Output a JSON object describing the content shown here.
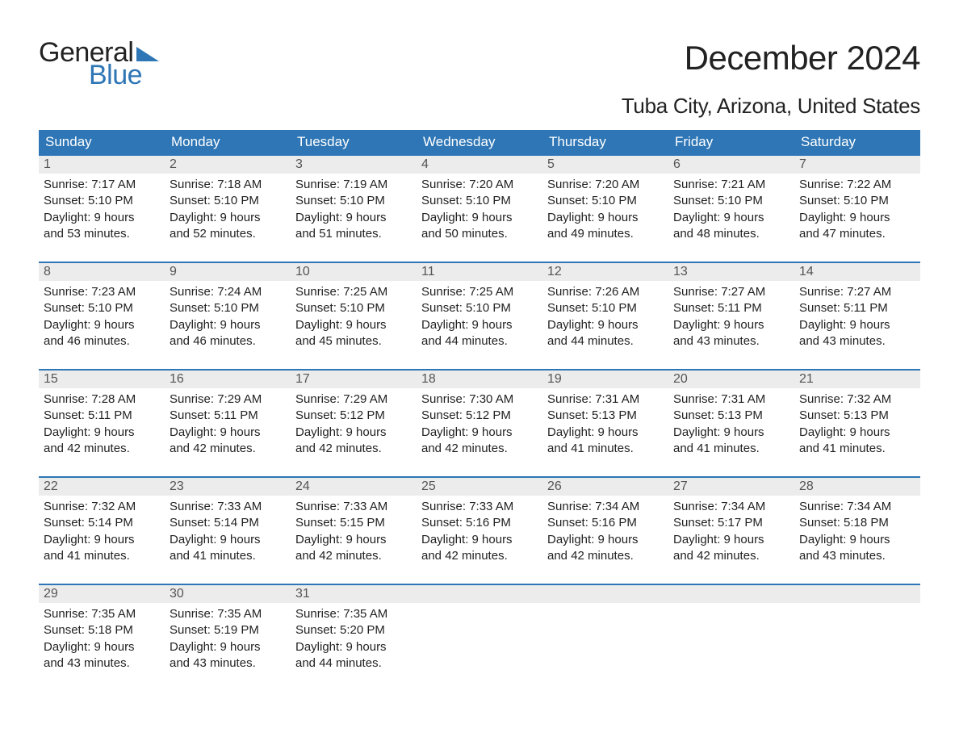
{
  "logo": {
    "line1": "General",
    "line2": "Blue",
    "accent_color": "#2e76b5"
  },
  "title": "December 2024",
  "location": "Tuba City, Arizona, United States",
  "colors": {
    "header_bg": "#2e76b5",
    "daynum_bg": "#ececec",
    "text": "#222222",
    "daynum_text": "#555555",
    "page_bg": "#ffffff"
  },
  "fonts": {
    "title_size": 42,
    "location_size": 26,
    "weekday_size": 17,
    "body_size": 15
  },
  "weekdays": [
    "Sunday",
    "Monday",
    "Tuesday",
    "Wednesday",
    "Thursday",
    "Friday",
    "Saturday"
  ],
  "weeks": [
    [
      {
        "n": "1",
        "sunrise": "Sunrise: 7:17 AM",
        "sunset": "Sunset: 5:10 PM",
        "d1": "Daylight: 9 hours",
        "d2": "and 53 minutes."
      },
      {
        "n": "2",
        "sunrise": "Sunrise: 7:18 AM",
        "sunset": "Sunset: 5:10 PM",
        "d1": "Daylight: 9 hours",
        "d2": "and 52 minutes."
      },
      {
        "n": "3",
        "sunrise": "Sunrise: 7:19 AM",
        "sunset": "Sunset: 5:10 PM",
        "d1": "Daylight: 9 hours",
        "d2": "and 51 minutes."
      },
      {
        "n": "4",
        "sunrise": "Sunrise: 7:20 AM",
        "sunset": "Sunset: 5:10 PM",
        "d1": "Daylight: 9 hours",
        "d2": "and 50 minutes."
      },
      {
        "n": "5",
        "sunrise": "Sunrise: 7:20 AM",
        "sunset": "Sunset: 5:10 PM",
        "d1": "Daylight: 9 hours",
        "d2": "and 49 minutes."
      },
      {
        "n": "6",
        "sunrise": "Sunrise: 7:21 AM",
        "sunset": "Sunset: 5:10 PM",
        "d1": "Daylight: 9 hours",
        "d2": "and 48 minutes."
      },
      {
        "n": "7",
        "sunrise": "Sunrise: 7:22 AM",
        "sunset": "Sunset: 5:10 PM",
        "d1": "Daylight: 9 hours",
        "d2": "and 47 minutes."
      }
    ],
    [
      {
        "n": "8",
        "sunrise": "Sunrise: 7:23 AM",
        "sunset": "Sunset: 5:10 PM",
        "d1": "Daylight: 9 hours",
        "d2": "and 46 minutes."
      },
      {
        "n": "9",
        "sunrise": "Sunrise: 7:24 AM",
        "sunset": "Sunset: 5:10 PM",
        "d1": "Daylight: 9 hours",
        "d2": "and 46 minutes."
      },
      {
        "n": "10",
        "sunrise": "Sunrise: 7:25 AM",
        "sunset": "Sunset: 5:10 PM",
        "d1": "Daylight: 9 hours",
        "d2": "and 45 minutes."
      },
      {
        "n": "11",
        "sunrise": "Sunrise: 7:25 AM",
        "sunset": "Sunset: 5:10 PM",
        "d1": "Daylight: 9 hours",
        "d2": "and 44 minutes."
      },
      {
        "n": "12",
        "sunrise": "Sunrise: 7:26 AM",
        "sunset": "Sunset: 5:10 PM",
        "d1": "Daylight: 9 hours",
        "d2": "and 44 minutes."
      },
      {
        "n": "13",
        "sunrise": "Sunrise: 7:27 AM",
        "sunset": "Sunset: 5:11 PM",
        "d1": "Daylight: 9 hours",
        "d2": "and 43 minutes."
      },
      {
        "n": "14",
        "sunrise": "Sunrise: 7:27 AM",
        "sunset": "Sunset: 5:11 PM",
        "d1": "Daylight: 9 hours",
        "d2": "and 43 minutes."
      }
    ],
    [
      {
        "n": "15",
        "sunrise": "Sunrise: 7:28 AM",
        "sunset": "Sunset: 5:11 PM",
        "d1": "Daylight: 9 hours",
        "d2": "and 42 minutes."
      },
      {
        "n": "16",
        "sunrise": "Sunrise: 7:29 AM",
        "sunset": "Sunset: 5:11 PM",
        "d1": "Daylight: 9 hours",
        "d2": "and 42 minutes."
      },
      {
        "n": "17",
        "sunrise": "Sunrise: 7:29 AM",
        "sunset": "Sunset: 5:12 PM",
        "d1": "Daylight: 9 hours",
        "d2": "and 42 minutes."
      },
      {
        "n": "18",
        "sunrise": "Sunrise: 7:30 AM",
        "sunset": "Sunset: 5:12 PM",
        "d1": "Daylight: 9 hours",
        "d2": "and 42 minutes."
      },
      {
        "n": "19",
        "sunrise": "Sunrise: 7:31 AM",
        "sunset": "Sunset: 5:13 PM",
        "d1": "Daylight: 9 hours",
        "d2": "and 41 minutes."
      },
      {
        "n": "20",
        "sunrise": "Sunrise: 7:31 AM",
        "sunset": "Sunset: 5:13 PM",
        "d1": "Daylight: 9 hours",
        "d2": "and 41 minutes."
      },
      {
        "n": "21",
        "sunrise": "Sunrise: 7:32 AM",
        "sunset": "Sunset: 5:13 PM",
        "d1": "Daylight: 9 hours",
        "d2": "and 41 minutes."
      }
    ],
    [
      {
        "n": "22",
        "sunrise": "Sunrise: 7:32 AM",
        "sunset": "Sunset: 5:14 PM",
        "d1": "Daylight: 9 hours",
        "d2": "and 41 minutes."
      },
      {
        "n": "23",
        "sunrise": "Sunrise: 7:33 AM",
        "sunset": "Sunset: 5:14 PM",
        "d1": "Daylight: 9 hours",
        "d2": "and 41 minutes."
      },
      {
        "n": "24",
        "sunrise": "Sunrise: 7:33 AM",
        "sunset": "Sunset: 5:15 PM",
        "d1": "Daylight: 9 hours",
        "d2": "and 42 minutes."
      },
      {
        "n": "25",
        "sunrise": "Sunrise: 7:33 AM",
        "sunset": "Sunset: 5:16 PM",
        "d1": "Daylight: 9 hours",
        "d2": "and 42 minutes."
      },
      {
        "n": "26",
        "sunrise": "Sunrise: 7:34 AM",
        "sunset": "Sunset: 5:16 PM",
        "d1": "Daylight: 9 hours",
        "d2": "and 42 minutes."
      },
      {
        "n": "27",
        "sunrise": "Sunrise: 7:34 AM",
        "sunset": "Sunset: 5:17 PM",
        "d1": "Daylight: 9 hours",
        "d2": "and 42 minutes."
      },
      {
        "n": "28",
        "sunrise": "Sunrise: 7:34 AM",
        "sunset": "Sunset: 5:18 PM",
        "d1": "Daylight: 9 hours",
        "d2": "and 43 minutes."
      }
    ],
    [
      {
        "n": "29",
        "sunrise": "Sunrise: 7:35 AM",
        "sunset": "Sunset: 5:18 PM",
        "d1": "Daylight: 9 hours",
        "d2": "and 43 minutes."
      },
      {
        "n": "30",
        "sunrise": "Sunrise: 7:35 AM",
        "sunset": "Sunset: 5:19 PM",
        "d1": "Daylight: 9 hours",
        "d2": "and 43 minutes."
      },
      {
        "n": "31",
        "sunrise": "Sunrise: 7:35 AM",
        "sunset": "Sunset: 5:20 PM",
        "d1": "Daylight: 9 hours",
        "d2": "and 44 minutes."
      },
      {
        "n": "",
        "sunrise": "",
        "sunset": "",
        "d1": "",
        "d2": ""
      },
      {
        "n": "",
        "sunrise": "",
        "sunset": "",
        "d1": "",
        "d2": ""
      },
      {
        "n": "",
        "sunrise": "",
        "sunset": "",
        "d1": "",
        "d2": ""
      },
      {
        "n": "",
        "sunrise": "",
        "sunset": "",
        "d1": "",
        "d2": ""
      }
    ]
  ]
}
